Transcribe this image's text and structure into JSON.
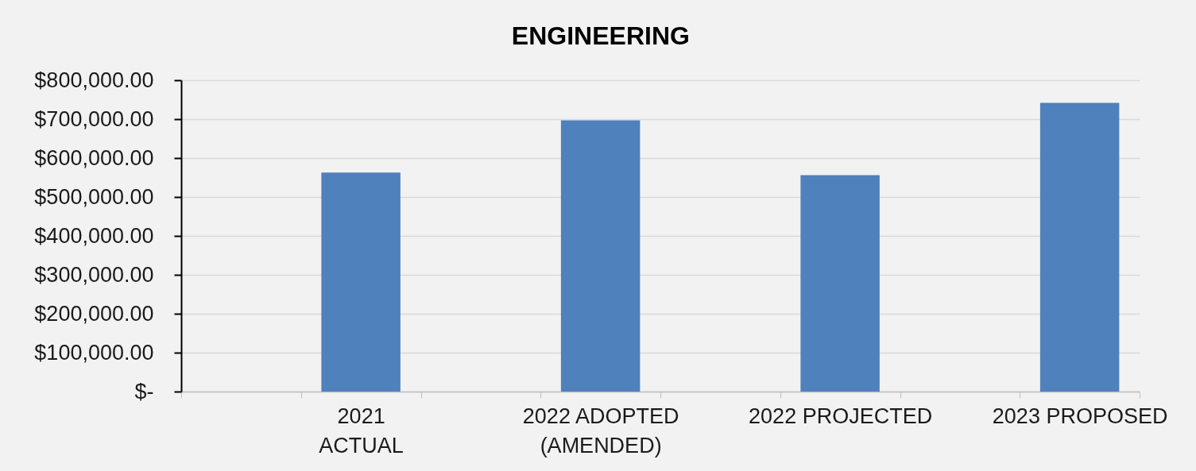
{
  "chart_data": {
    "type": "bar",
    "title": "ENGINEERING",
    "categories": [
      null,
      "2021\nACTUAL",
      null,
      "2022 ADOPTED\n(AMENDED)",
      null,
      "2022 PROJECTED",
      null,
      "2023 PROPOSED"
    ],
    "values": [
      null,
      563000,
      null,
      697000,
      null,
      556000,
      null,
      742000
    ],
    "color": "#4f81bd",
    "ylim": [
      0,
      800000
    ],
    "yticks": [
      {
        "value": 0,
        "label": "$-"
      },
      {
        "value": 100000,
        "label": "$100,000.00"
      },
      {
        "value": 200000,
        "label": "$200,000.00"
      },
      {
        "value": 300000,
        "label": "$300,000.00"
      },
      {
        "value": 400000,
        "label": "$400,000.00"
      },
      {
        "value": 500000,
        "label": "$500,000.00"
      },
      {
        "value": 600000,
        "label": "$600,000.00"
      },
      {
        "value": 700000,
        "label": "$700,000.00"
      },
      {
        "value": 800000,
        "label": "$800,000.00"
      }
    ],
    "grid": "y"
  }
}
